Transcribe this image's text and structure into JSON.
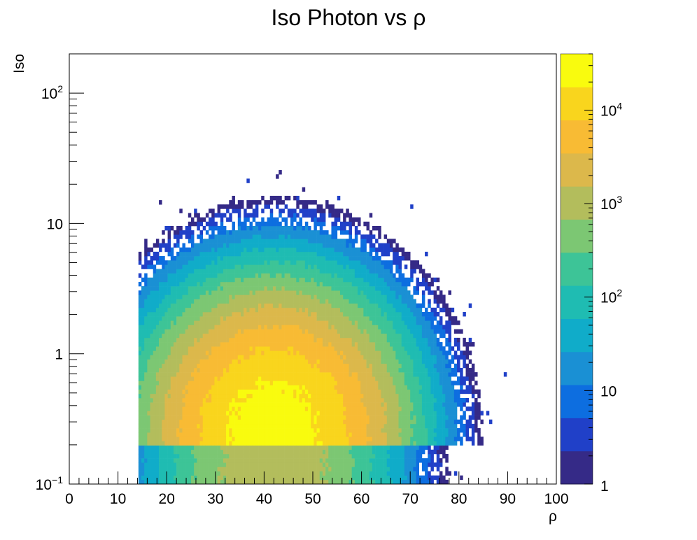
{
  "chart_data": {
    "type": "heatmap",
    "title": "Iso Photon vs ρ",
    "xlabel": "ρ",
    "ylabel": "Iso",
    "xlim": [
      0,
      100
    ],
    "ylim": [
      0.1,
      200
    ],
    "yscale": "log",
    "zscale": "log",
    "zlim": [
      1,
      40000
    ],
    "x_ticks": [
      "0",
      "10",
      "20",
      "30",
      "40",
      "50",
      "60",
      "70",
      "80",
      "90",
      "100"
    ],
    "y_ticks": [
      {
        "base": "10",
        "exp": "−1",
        "value": 0.1
      },
      {
        "base": "1",
        "exp": "",
        "value": 1
      },
      {
        "base": "10",
        "exp": "",
        "value": 10
      },
      {
        "base": "10",
        "exp": "2",
        "value": 100
      }
    ],
    "z_ticks": [
      {
        "base": "1",
        "exp": "",
        "value": 1
      },
      {
        "base": "10",
        "exp": "",
        "value": 10
      },
      {
        "base": "10",
        "exp": "2",
        "value": 100
      },
      {
        "base": "10",
        "exp": "3",
        "value": 1000
      },
      {
        "base": "10",
        "exp": "4",
        "value": 10000
      }
    ],
    "grid": false,
    "legend": "colorbar-right",
    "peak": {
      "x": 42,
      "y": 0.25,
      "count": 30000
    },
    "x_range_filled": [
      14,
      93
    ],
    "y_range_filled": [
      0.1,
      60
    ],
    "colormap": [
      "#352a87",
      "#2040c8",
      "#0d6ee0",
      "#1a90d4",
      "#10acc9",
      "#1fbcb2",
      "#3dc497",
      "#7cc773",
      "#b3bd5c",
      "#dcb84b",
      "#f8bb34",
      "#f9d51d",
      "#f9fb0e"
    ]
  }
}
